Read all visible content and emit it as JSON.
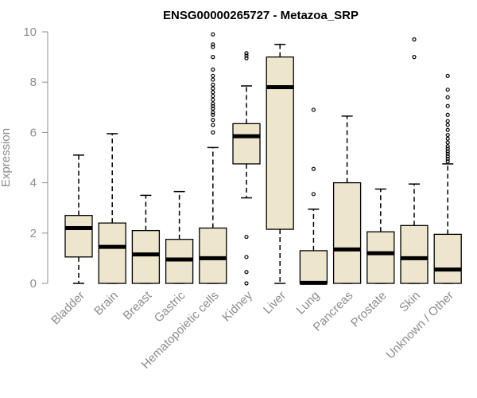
{
  "chart_data": {
    "type": "boxplot",
    "title": "ENSG00000265727 - Metazoa_SRP",
    "xlabel": "",
    "ylabel": "Expression",
    "ylim": [
      0,
      10
    ],
    "yticks": [
      0,
      2,
      4,
      6,
      8,
      10
    ],
    "grid": false,
    "box_color": "#ede6cc",
    "categories": [
      "Bladder",
      "Brain",
      "Breast",
      "Gastric",
      "Hematopoietic cells",
      "Kidney",
      "Liver",
      "Lung",
      "Pancreas",
      "Prostate",
      "Skin",
      "Unknown / Other"
    ],
    "boxes": [
      {
        "q1": 1.05,
        "median": 2.2,
        "q3": 2.7,
        "lower": 0.0,
        "upper": 5.1,
        "outliers": []
      },
      {
        "q1": 0.0,
        "median": 1.45,
        "q3": 2.4,
        "lower": 0.0,
        "upper": 5.95,
        "outliers": []
      },
      {
        "q1": 0.0,
        "median": 1.15,
        "q3": 2.1,
        "lower": 0.0,
        "upper": 3.5,
        "outliers": []
      },
      {
        "q1": 0.0,
        "median": 0.95,
        "q3": 1.75,
        "lower": 0.0,
        "upper": 3.65,
        "outliers": []
      },
      {
        "q1": 0.0,
        "median": 1.0,
        "q3": 2.2,
        "lower": 0.0,
        "upper": 5.4,
        "outliers": [
          6.0,
          6.3,
          6.5,
          6.7,
          6.8,
          6.95,
          7.05,
          7.15,
          7.3,
          7.45,
          7.6,
          7.75,
          7.9,
          8.1,
          8.25,
          8.5,
          9.0,
          9.4,
          9.5,
          9.9
        ]
      },
      {
        "q1": 4.75,
        "median": 5.85,
        "q3": 6.35,
        "lower": 3.4,
        "upper": 7.85,
        "outliers": [
          0.0,
          0.45,
          1.05,
          1.85,
          8.95,
          9.05,
          9.15
        ]
      },
      {
        "q1": 2.15,
        "median": 7.8,
        "q3": 9.0,
        "lower": 0.0,
        "upper": 9.5,
        "outliers": []
      },
      {
        "q1": 0.0,
        "median": 0.02,
        "q3": 1.3,
        "lower": 0.0,
        "upper": 2.95,
        "outliers": [
          3.55,
          4.55,
          6.9
        ]
      },
      {
        "q1": 0.0,
        "median": 1.35,
        "q3": 4.0,
        "lower": 0.0,
        "upper": 6.65,
        "outliers": []
      },
      {
        "q1": 0.0,
        "median": 1.2,
        "q3": 2.05,
        "lower": 0.0,
        "upper": 3.75,
        "outliers": []
      },
      {
        "q1": 0.0,
        "median": 1.0,
        "q3": 2.3,
        "lower": 0.0,
        "upper": 3.95,
        "outliers": [
          9.0,
          9.7
        ]
      },
      {
        "q1": 0.0,
        "median": 0.55,
        "q3": 1.95,
        "lower": 0.0,
        "upper": 4.75,
        "outliers": [
          4.85,
          4.95,
          5.05,
          5.15,
          5.25,
          5.35,
          5.45,
          5.6,
          5.75,
          5.9,
          6.1,
          6.3,
          6.45,
          6.7,
          7.05,
          7.4,
          7.7,
          8.25
        ]
      }
    ]
  }
}
